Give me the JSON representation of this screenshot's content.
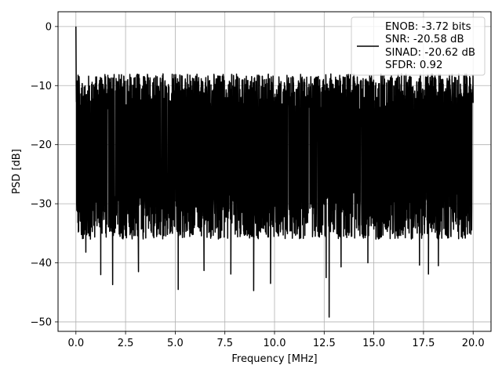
{
  "chart_data": {
    "type": "line",
    "title": "",
    "xlabel": "Frequency [MHz]",
    "ylabel": "PSD [dB]",
    "xlim": [
      -0.9,
      20.9
    ],
    "ylim": [
      -51.6,
      2.5
    ],
    "xticks": [
      0.0,
      2.5,
      5.0,
      7.5,
      10.0,
      12.5,
      15.0,
      17.5,
      20.0
    ],
    "xtick_labels": [
      "0.0",
      "2.5",
      "5.0",
      "7.5",
      "10.0",
      "12.5",
      "15.0",
      "17.5",
      "20.0"
    ],
    "yticks": [
      0,
      -10,
      -20,
      -30,
      -40,
      -50
    ],
    "ytick_labels": [
      "0",
      "−10",
      "−20",
      "−30",
      "−40",
      "−50"
    ],
    "grid": true,
    "legend": {
      "placement": "top-right",
      "entries": [
        "ENOB: -3.72 bits",
        "SNR: -20.58 dB",
        "SINAD: -20.62 dB",
        "SFDR: 0.92"
      ]
    },
    "series": [
      {
        "color": "#000000",
        "description": "noise floor PSD",
        "x_range": [
          0.0,
          20.0
        ],
        "peak": {
          "x": 0.0,
          "y": 0.0
        },
        "envelope_upper": -10,
        "envelope_lower": -30,
        "notable_dips": [
          {
            "x": 12.75,
            "y": -49.2
          },
          {
            "x": 12.6,
            "y": -42.5
          },
          {
            "x": 8.95,
            "y": -44.7
          },
          {
            "x": 5.15,
            "y": -44.5
          },
          {
            "x": 9.8,
            "y": -43.5
          },
          {
            "x": 1.85,
            "y": -43.7
          },
          {
            "x": 1.25,
            "y": -42.0
          },
          {
            "x": 17.75,
            "y": -41.9
          },
          {
            "x": 3.15,
            "y": -41.5
          },
          {
            "x": 6.45,
            "y": -41.3
          },
          {
            "x": 7.8,
            "y": -41.9
          },
          {
            "x": 18.25,
            "y": -40.5
          },
          {
            "x": 17.3,
            "y": -40.4
          },
          {
            "x": 13.35,
            "y": -40.7
          },
          {
            "x": 14.7,
            "y": -40.0
          },
          {
            "x": 0.5,
            "y": -38.2
          }
        ]
      }
    ]
  }
}
